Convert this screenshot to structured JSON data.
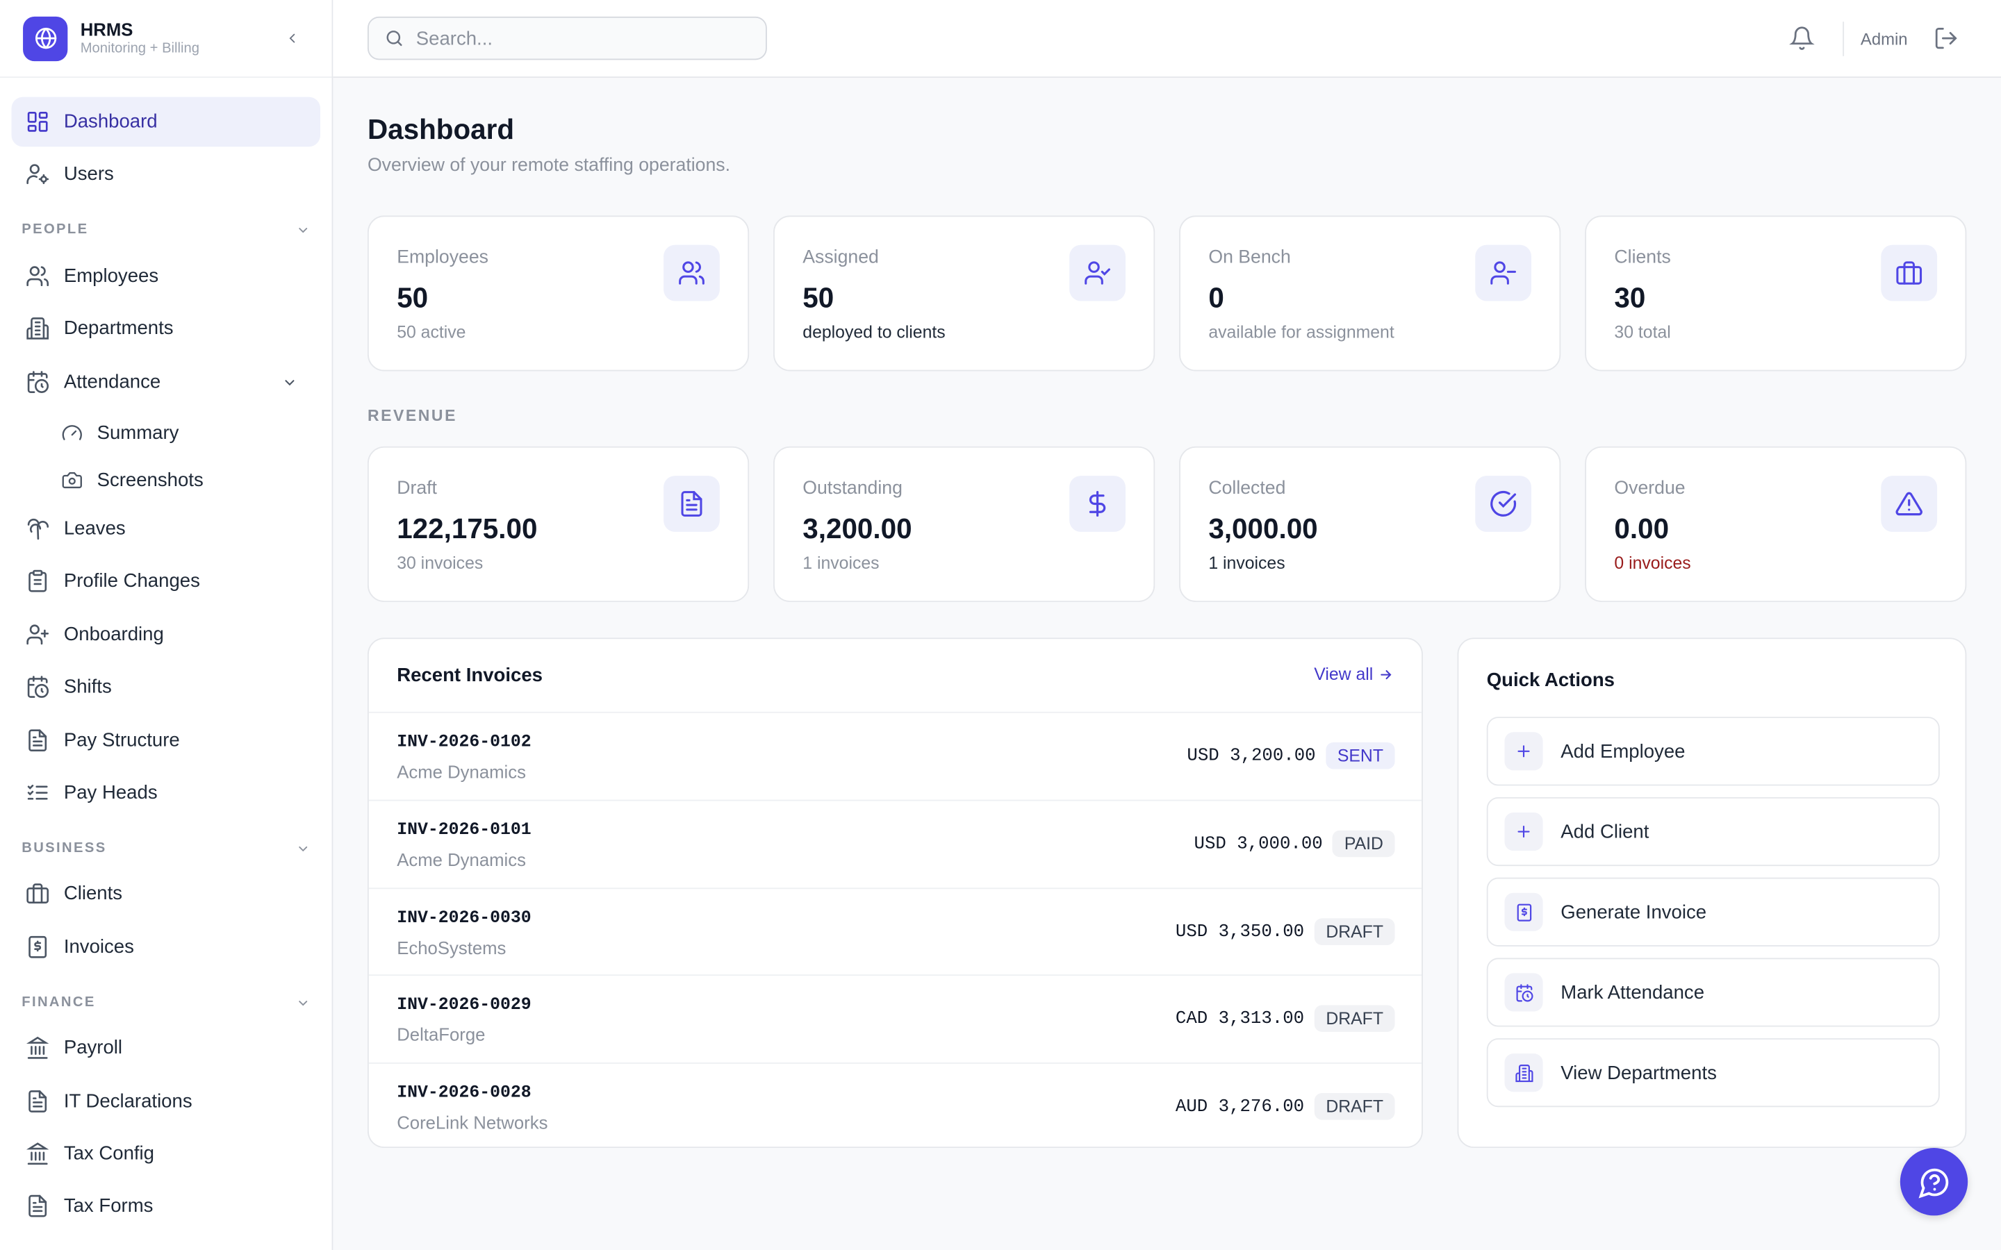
{
  "app": {
    "title": "HRMS",
    "subtitle": "Monitoring + Billing"
  },
  "sidebar": {
    "top_items": [
      {
        "label": "Dashboard",
        "icon": "layout-dashboard-icon",
        "active": true
      },
      {
        "label": "Users",
        "icon": "user-cog-icon"
      }
    ],
    "sections": {
      "people": {
        "label": "PEOPLE",
        "items": [
          "Employees",
          "Departments",
          "Attendance",
          "Summary",
          "Screenshots",
          "Leaves",
          "Profile Changes",
          "Onboarding",
          "Shifts",
          "Pay Structure",
          "Pay Heads"
        ]
      },
      "business": {
        "label": "BUSINESS",
        "items": [
          "Clients",
          "Invoices"
        ]
      },
      "finance": {
        "label": "FINANCE",
        "items": [
          "Payroll",
          "IT Declarations",
          "Tax Config",
          "Tax Forms"
        ]
      }
    }
  },
  "header": {
    "search_placeholder": "Search...",
    "user": "Admin"
  },
  "page": {
    "title": "Dashboard",
    "subtitle": "Overview of your remote staffing operations."
  },
  "stats": [
    {
      "label": "Employees",
      "value": "50",
      "sub": "50 active",
      "icon": "users-icon"
    },
    {
      "label": "Assigned",
      "value": "50",
      "sub": "deployed to clients",
      "icon": "user-check-icon"
    },
    {
      "label": "On Bench",
      "value": "0",
      "sub": "available for assignment",
      "icon": "user-minus-icon"
    },
    {
      "label": "Clients",
      "value": "30",
      "sub": "30 total",
      "icon": "briefcase-icon"
    }
  ],
  "revenue": {
    "label": "REVENUE",
    "cards": [
      {
        "label": "Draft",
        "value": "122,175.00",
        "sub": "30 invoices",
        "icon": "file-text-icon"
      },
      {
        "label": "Outstanding",
        "value": "3,200.00",
        "sub": "1 invoices",
        "icon": "dollar-icon"
      },
      {
        "label": "Collected",
        "value": "3,000.00",
        "sub": "1 invoices",
        "icon": "circle-check-icon"
      },
      {
        "label": "Overdue",
        "value": "0.00",
        "sub": "0 invoices",
        "icon": "alert-triangle-icon"
      }
    ]
  },
  "recent_invoices": {
    "title": "Recent Invoices",
    "view_all": "View all",
    "rows": [
      {
        "number": "INV-2026-0102",
        "client": "Acme Dynamics",
        "amount": "USD 3,200.00",
        "status": "SENT"
      },
      {
        "number": "INV-2026-0101",
        "client": "Acme Dynamics",
        "amount": "USD 3,000.00",
        "status": "PAID"
      },
      {
        "number": "INV-2026-0030",
        "client": "EchoSystems",
        "amount": "USD 3,350.00",
        "status": "DRAFT"
      },
      {
        "number": "INV-2026-0029",
        "client": "DeltaForge",
        "amount": "CAD 3,313.00",
        "status": "DRAFT"
      },
      {
        "number": "INV-2026-0028",
        "client": "CoreLink Networks",
        "amount": "AUD 3,276.00",
        "status": "DRAFT"
      }
    ]
  },
  "quick_actions": {
    "title": "Quick Actions",
    "items": [
      {
        "label": "Add Employee",
        "icon": "plus-icon"
      },
      {
        "label": "Add Client",
        "icon": "plus-icon"
      },
      {
        "label": "Generate Invoice",
        "icon": "invoice-icon"
      },
      {
        "label": "Mark Attendance",
        "icon": "calendar-clock-icon"
      },
      {
        "label": "View Departments",
        "icon": "building-icon"
      }
    ]
  },
  "colors": {
    "accent": "#4f46e5",
    "accent_bg": "#eef0fb",
    "overdue": "#991b1b"
  }
}
